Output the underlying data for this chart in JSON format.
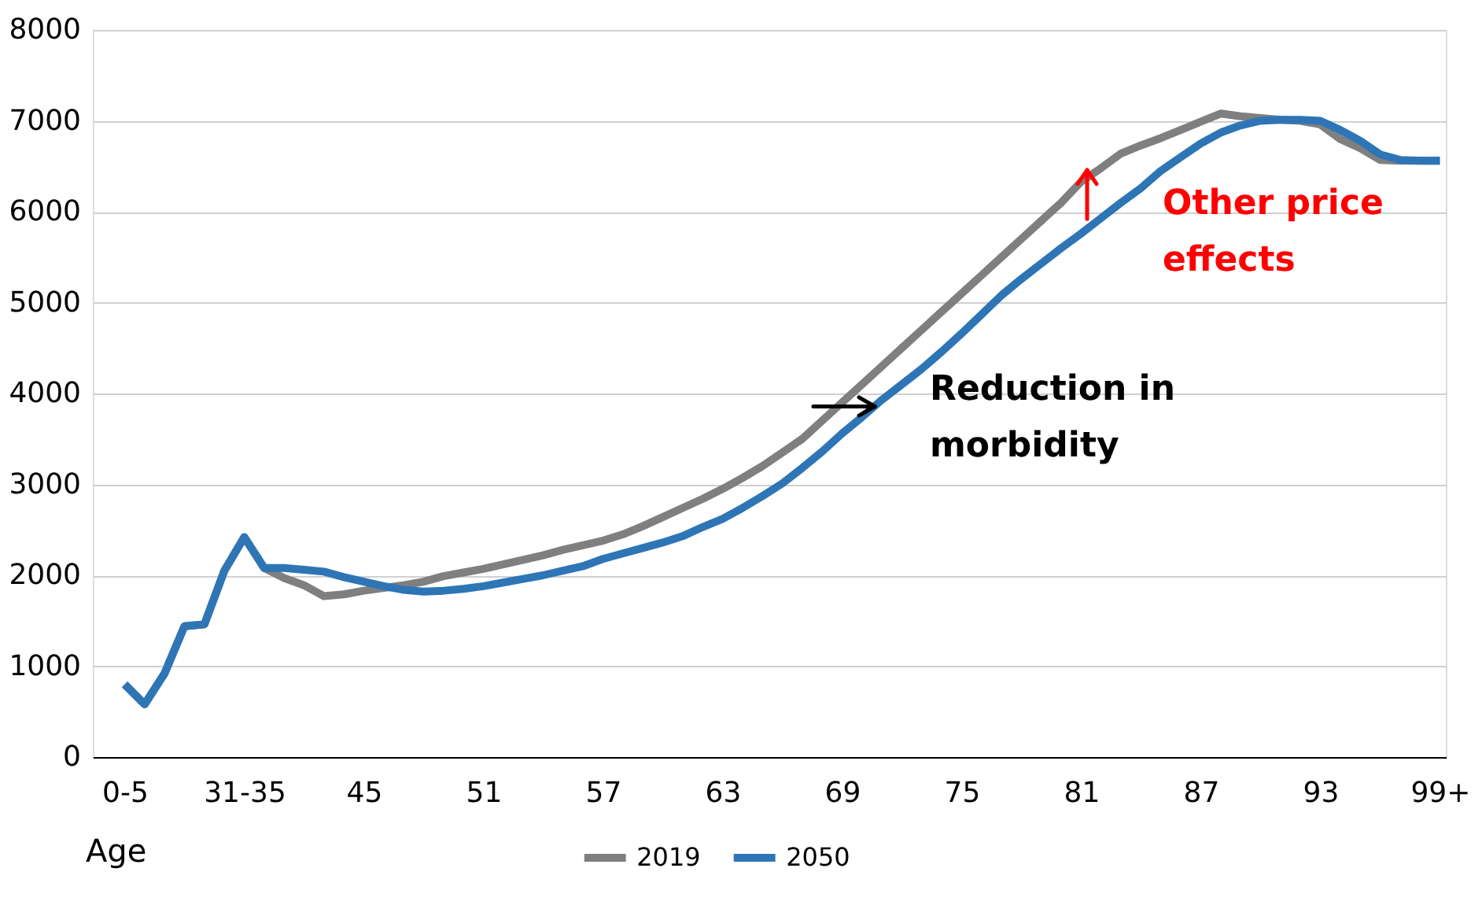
{
  "chart_data": {
    "type": "line",
    "categories": [
      "0-5",
      null,
      null,
      null,
      null,
      null,
      "31-35",
      null,
      null,
      null,
      null,
      null,
      "45",
      null,
      null,
      null,
      null,
      null,
      "51",
      null,
      null,
      null,
      null,
      null,
      "57",
      null,
      null,
      null,
      null,
      null,
      "63",
      null,
      null,
      null,
      null,
      null,
      "69",
      null,
      null,
      null,
      null,
      null,
      "75",
      null,
      null,
      null,
      null,
      null,
      "81",
      null,
      null,
      null,
      null,
      null,
      "87",
      null,
      null,
      null,
      null,
      null,
      "93",
      null,
      null,
      null,
      null,
      null,
      "99+"
    ],
    "series": [
      {
        "name": "2019",
        "color": "#7f7f7f",
        "values": [
          800,
          580,
          920,
          1440,
          1460,
          2050,
          2420,
          2080,
          1970,
          1890,
          1770,
          1790,
          1830,
          1860,
          1890,
          1930,
          1990,
          2030,
          2070,
          2120,
          2170,
          2220,
          2280,
          2330,
          2380,
          2450,
          2540,
          2640,
          2740,
          2840,
          2950,
          3070,
          3200,
          3350,
          3500,
          3700,
          3900,
          4100,
          4300,
          4500,
          4700,
          4900,
          5100,
          5300,
          5500,
          5700,
          5900,
          6100,
          6330,
          6480,
          6640,
          6730,
          6810,
          6900,
          6990,
          7080,
          7050,
          7030,
          7010,
          7000,
          6960,
          6800,
          6700,
          6570,
          6560,
          6560,
          6560
        ]
      },
      {
        "name": "2050",
        "color": "#2e75b6",
        "values": [
          800,
          580,
          920,
          1440,
          1460,
          2050,
          2420,
          2080,
          2080,
          2060,
          2040,
          1980,
          1930,
          1880,
          1840,
          1820,
          1830,
          1850,
          1880,
          1920,
          1960,
          2000,
          2050,
          2100,
          2180,
          2240,
          2300,
          2360,
          2430,
          2530,
          2620,
          2740,
          2870,
          3010,
          3180,
          3360,
          3560,
          3740,
          3930,
          4100,
          4270,
          4460,
          4660,
          4870,
          5080,
          5260,
          5430,
          5600,
          5760,
          5930,
          6100,
          6260,
          6450,
          6600,
          6750,
          6870,
          6950,
          7000,
          7010,
          7010,
          7000,
          6900,
          6780,
          6630,
          6570,
          6560,
          6560
        ]
      }
    ],
    "xlabel": "Age",
    "ylim": [
      0,
      8000
    ],
    "yticks": [
      0,
      1000,
      2000,
      3000,
      4000,
      5000,
      6000,
      7000,
      8000
    ],
    "grid": "y",
    "legend": "bottom",
    "marker": "none",
    "line_style": "solid",
    "annotations": [
      "Reduction in\nmorbidity",
      "Other price\neffects"
    ]
  }
}
